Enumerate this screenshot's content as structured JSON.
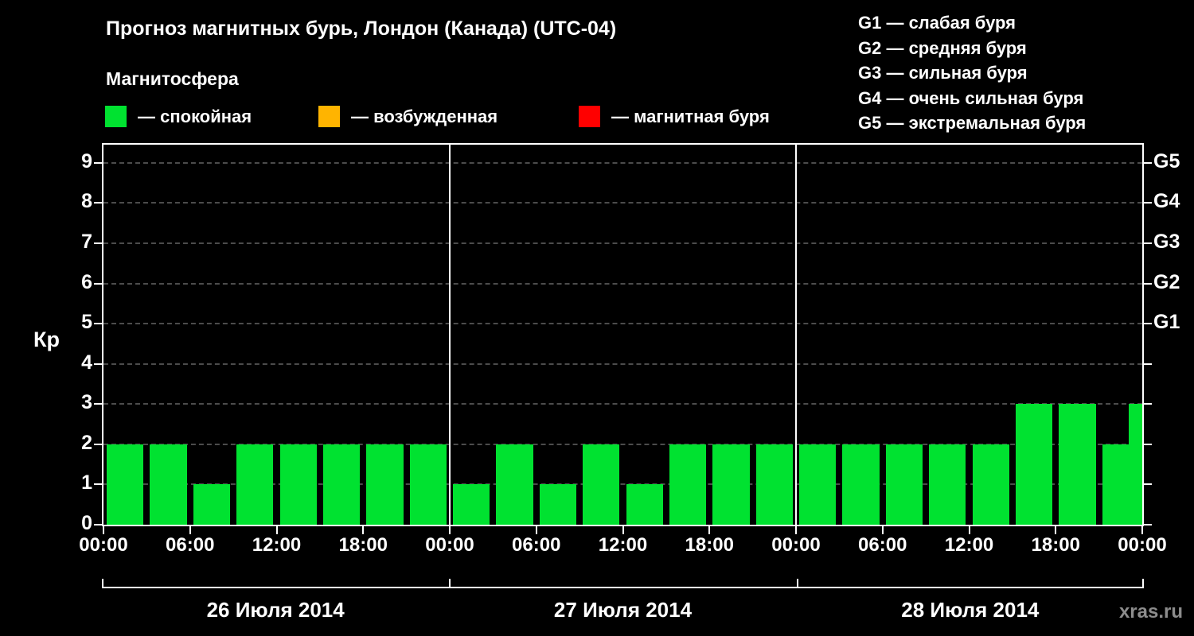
{
  "header": {
    "title": "Прогноз магнитных бурь, Лондон (Канада) (UTC-04)",
    "subtitle": "Магнитосфера",
    "legend": [
      {
        "name": "quiet",
        "color": "#00e230",
        "label": "— спокойная"
      },
      {
        "name": "excited",
        "color": "#ffb400",
        "label": "— возбужденная"
      },
      {
        "name": "storm",
        "color": "#ff0000",
        "label": "— магнитная буря"
      }
    ],
    "g_scale": [
      "G1 — слабая буря",
      "G2 — средняя буря",
      "G3 — сильная буря",
      "G4 — очень сильная буря",
      "G5 — экстремальная буря"
    ]
  },
  "chart_data": {
    "type": "bar",
    "title": "Прогноз магнитных бурь, Лондон (Канада) (UTC-04)",
    "ylabel": "Кр",
    "ylim": [
      0,
      9.45
    ],
    "yticks": [
      0,
      1,
      2,
      3,
      4,
      5,
      6,
      7,
      8,
      9
    ],
    "right_axis_ticks": [
      {
        "label": "G1",
        "value": 5
      },
      {
        "label": "G2",
        "value": 6
      },
      {
        "label": "G3",
        "value": 7
      },
      {
        "label": "G4",
        "value": 8
      },
      {
        "label": "G5",
        "value": 9
      }
    ],
    "bar_color": "#00e230",
    "grid": {
      "horizontal": "dashed",
      "color": "#4c4c4c"
    },
    "hours_per_bar": 3,
    "x_tick_labels": [
      "00:00",
      "06:00",
      "12:00",
      "18:00"
    ],
    "x_axis_end_label": "00:00",
    "days": [
      {
        "date": "26 Июля 2014",
        "values": [
          2,
          2,
          1,
          2,
          2,
          2,
          2,
          2
        ]
      },
      {
        "date": "27 Июля 2014",
        "values": [
          1,
          2,
          1,
          2,
          1,
          2,
          2,
          2
        ]
      },
      {
        "date": "28 Июля 2014",
        "values": [
          2,
          2,
          2,
          2,
          2,
          3,
          3,
          2
        ]
      }
    ],
    "next_day_partial_value": 3
  },
  "watermark": "xras.ru"
}
